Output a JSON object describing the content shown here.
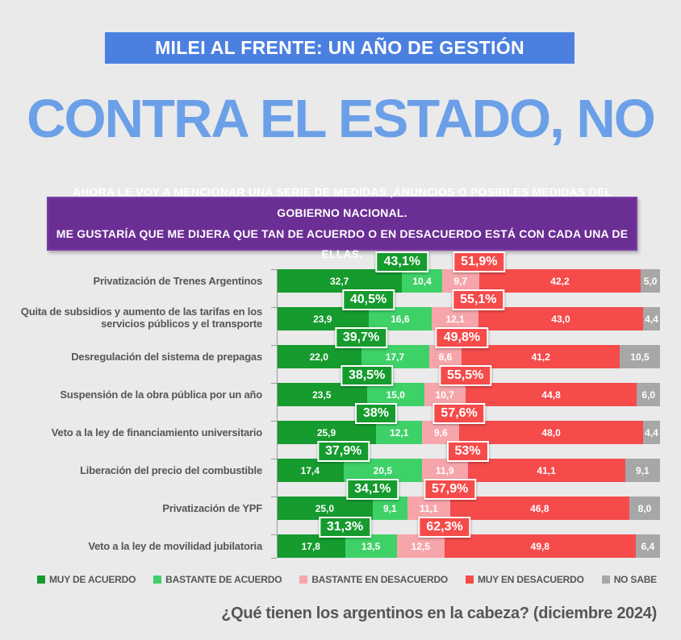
{
  "banner": {
    "label": "MILEI AL FRENTE: UN AÑO DE GESTIÓN",
    "bg_color": "#4b80e1"
  },
  "title": {
    "label": "CONTRA EL ESTADO, NO",
    "color": "#6ba0e8"
  },
  "question_box": {
    "line1": "AHORA LE VOY A MENCIONAR UNA SERIE DE MEDIDAS ,ANUNCIOS  O POSIBLES MEDIDAS DEL GOBIERNO NACIONAL.",
    "line2": "ME GUSTARÍA QUE ME DIJERA QUE TAN DE ACUERDO O EN DESACUERDO ESTÁ CON CADA UNA DE ELLAS.",
    "bg_color": "#6b2e94"
  },
  "chart_data": {
    "type": "bar",
    "orientation": "horizontal_stacked",
    "unit": "percent",
    "xlim": [
      0,
      100
    ],
    "legend_position": "bottom",
    "series_names": [
      "Muy de acuerdo",
      "Bastante de acuerdo",
      "Bastante en desacuerdo",
      "Muy en desacuerdo",
      "No sabe"
    ],
    "series_colors": [
      "#169b2e",
      "#3ed167",
      "#f6a6ab",
      "#f54b4b",
      "#a7a7a7"
    ],
    "rows": [
      {
        "label": "Privatización de Trenes Argentinos",
        "values": [
          32.7,
          10.4,
          9.7,
          42.2,
          5.0
        ],
        "display": [
          "32,7",
          "10,4",
          "9,7",
          "42,2",
          "5,0"
        ],
        "agree_label": "43,1%",
        "disagree_label": "51,9%"
      },
      {
        "label": "Quita de subsidios y aumento de las tarifas en los servicios públicos y el transporte",
        "values": [
          23.9,
          16.6,
          12.1,
          43.0,
          4.4
        ],
        "display": [
          "23,9",
          "16,6",
          "12,1",
          "43,0",
          "4,4"
        ],
        "agree_label": "40,5%",
        "disagree_label": "55,1%"
      },
      {
        "label": "Desregulación del sistema de prepagas",
        "values": [
          22.0,
          17.7,
          8.6,
          41.2,
          10.5
        ],
        "display": [
          "22,0",
          "17,7",
          "8,6",
          "41,2",
          "10,5"
        ],
        "agree_label": "39,7%",
        "disagree_label": "49,8%"
      },
      {
        "label": "Suspensión de la obra pública por un año",
        "values": [
          23.5,
          15.0,
          10.7,
          44.8,
          6.0
        ],
        "display": [
          "23,5",
          "15,0",
          "10,7",
          "44,8",
          "6,0"
        ],
        "agree_label": "38,5%",
        "disagree_label": "55,5%"
      },
      {
        "label": "Veto a la ley de financiamiento universitario",
        "values": [
          25.9,
          12.1,
          9.6,
          48.0,
          4.4
        ],
        "display": [
          "25,9",
          "12,1",
          "9,6",
          "48,0",
          "4,4"
        ],
        "agree_label": "38%",
        "disagree_label": "57,6%"
      },
      {
        "label": "Liberación del precio del combustible",
        "values": [
          17.4,
          20.5,
          11.9,
          41.1,
          9.1
        ],
        "display": [
          "17,4",
          "20,5",
          "11,9",
          "41,1",
          "9,1"
        ],
        "agree_label": "37,9%",
        "disagree_label": "53%"
      },
      {
        "label": "Privatización de YPF",
        "values": [
          25.0,
          9.1,
          11.1,
          46.8,
          8.0
        ],
        "display": [
          "25,0",
          "9,1",
          "11,1",
          "46,8",
          "8,0"
        ],
        "agree_label": "34,1%",
        "disagree_label": "57,9%"
      },
      {
        "label": "Veto a la ley de movilidad jubilatoria",
        "values": [
          17.8,
          13.5,
          12.5,
          49.8,
          6.4
        ],
        "display": [
          "17,8",
          "13,5",
          "12,5",
          "49,8",
          "6,4"
        ],
        "agree_label": "31,3%",
        "disagree_label": "62,3%"
      }
    ],
    "agree_badge_color": "#169b2e",
    "disagree_badge_color": "#f54b4b"
  },
  "legend": {
    "items": [
      {
        "label": "MUY DE ACUERDO",
        "color": "#169b2e"
      },
      {
        "label": "BASTANTE DE ACUERDO",
        "color": "#3ed167"
      },
      {
        "label": "BASTANTE EN DESACUERDO",
        "color": "#f6a6ab"
      },
      {
        "label": "MUY EN DESACUERDO",
        "color": "#f54b4b"
      },
      {
        "label": "NO SABE",
        "color": "#a7a7a7"
      }
    ]
  },
  "footer": {
    "label": "¿Qué tienen los argentinos en la cabeza? (diciembre 2024)"
  }
}
